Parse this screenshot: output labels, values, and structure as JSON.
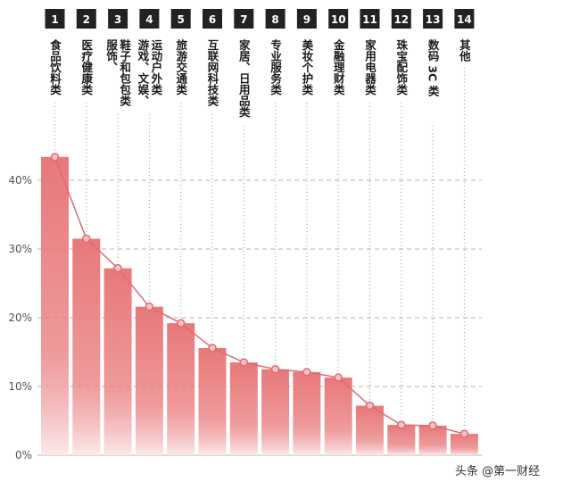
{
  "chart_data": {
    "type": "bar",
    "rank_labels": [
      "1",
      "2",
      "3",
      "4",
      "5",
      "6",
      "7",
      "8",
      "9",
      "10",
      "11",
      "12",
      "13",
      "14"
    ],
    "categories": [
      "食品饮料类",
      "医疗健康类",
      "服饰、鞋子和包包类",
      "游戏、文娱、运动户外类",
      "旅游交通类",
      "互联网科技类",
      "家居、日用品类",
      "专业服务类",
      "美妆个护类",
      "金融理财类",
      "家用电器类",
      "珠宝配饰类",
      "数码 3C 类",
      "其他"
    ],
    "label_lines": [
      [
        "食品饮料类"
      ],
      [
        "医疗健康类"
      ],
      [
        "服饰、",
        "鞋子和包包类"
      ],
      [
        "游戏、文娱、",
        "运动户外类"
      ],
      [
        "旅游交通类"
      ],
      [
        "互联网科技类"
      ],
      [
        "家居、日用品类"
      ],
      [
        "专业服务类"
      ],
      [
        "美妆个护类"
      ],
      [
        "金融理财类"
      ],
      [
        "家用电器类"
      ],
      [
        "珠宝配饰类"
      ],
      [
        "数码 3C 类"
      ],
      [
        "其他"
      ]
    ],
    "values": [
      43.4,
      31.5,
      27.2,
      21.6,
      19.2,
      15.6,
      13.5,
      12.5,
      12.1,
      11.3,
      7.2,
      4.4,
      4.3,
      3.1
    ],
    "ylim": [
      0,
      45
    ],
    "yticks": [
      "0%",
      "10%",
      "20%",
      "30%",
      "40%"
    ],
    "ytick_values": [
      0,
      10,
      20,
      30,
      40
    ],
    "grid": true,
    "colors": {
      "bar_top": "#e8787a",
      "bar_bottom": "#fbe9ea",
      "line": "#e06b70",
      "rank_box": "#222222",
      "grid": "#b5b5b5"
    }
  },
  "watermark": "头条 @第一财经"
}
